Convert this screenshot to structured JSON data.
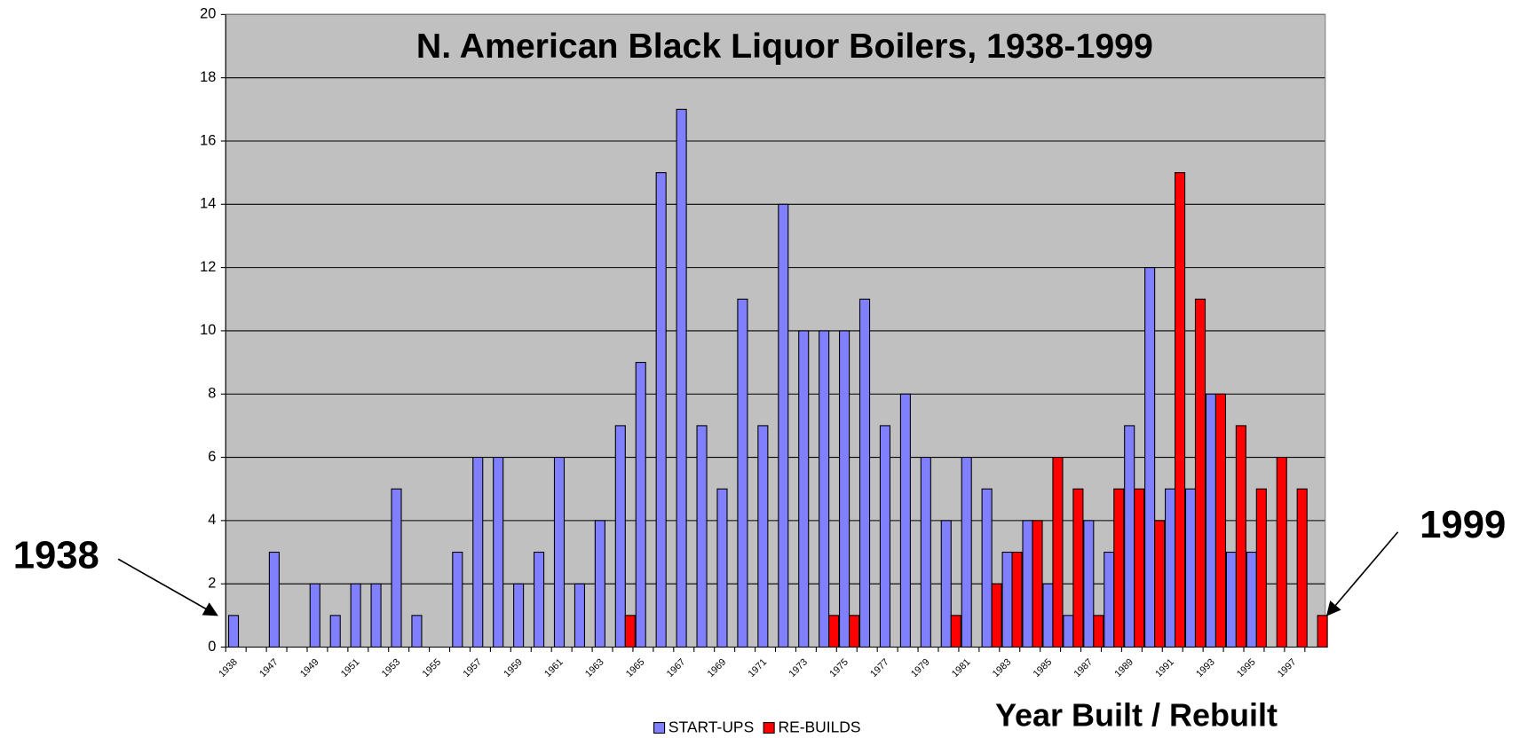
{
  "chart_data": {
    "type": "bar",
    "title": "N. American Black Liquor Boilers, 1938-1999",
    "x_label": "Year Built / Rebuilt",
    "annotations": [
      "1938",
      "1999"
    ],
    "categories": [
      "1938",
      null,
      "1947",
      null,
      "1949",
      null,
      "1951",
      null,
      "1953",
      null,
      "1955",
      null,
      "1957",
      null,
      "1959",
      null,
      "1961",
      null,
      "1963",
      null,
      "1965",
      null,
      "1967",
      null,
      "1969",
      null,
      "1971",
      null,
      "1973",
      null,
      "1975",
      null,
      "1977",
      null,
      "1979",
      null,
      "1981",
      null,
      "1983",
      null,
      "1985",
      null,
      "1987",
      null,
      "1989",
      null,
      "1991",
      null,
      "1993",
      null,
      "1995",
      null,
      "1997",
      null
    ],
    "series": [
      {
        "name": "START-UPS",
        "color": "#8080ff",
        "values": [
          1,
          0,
          3,
          0,
          2,
          1,
          2,
          2,
          5,
          1,
          0,
          3,
          6,
          6,
          2,
          3,
          6,
          2,
          4,
          7,
          9,
          15,
          17,
          7,
          5,
          11,
          7,
          14,
          10,
          10,
          10,
          11,
          7,
          8,
          6,
          4,
          6,
          5,
          3,
          4,
          2,
          1,
          4,
          3,
          7,
          12,
          5,
          5,
          8,
          3,
          3,
          0,
          0,
          0
        ]
      },
      {
        "name": "RE-BUILDS",
        "color": "#ff0000",
        "values": [
          0,
          0,
          0,
          0,
          0,
          0,
          0,
          0,
          0,
          0,
          0,
          0,
          0,
          0,
          0,
          0,
          0,
          0,
          0,
          1,
          0,
          0,
          0,
          0,
          0,
          0,
          0,
          0,
          0,
          1,
          1,
          0,
          0,
          0,
          0,
          1,
          0,
          2,
          3,
          4,
          6,
          5,
          1,
          5,
          5,
          4,
          15,
          11,
          8,
          7,
          5,
          6,
          5,
          1
        ]
      }
    ],
    "ylim": [
      0,
      20
    ],
    "yticks": [
      0,
      2,
      4,
      6,
      8,
      10,
      12,
      14,
      16,
      18,
      20
    ],
    "grid": true,
    "background": "#c0c0c0",
    "legend": "bottom"
  }
}
